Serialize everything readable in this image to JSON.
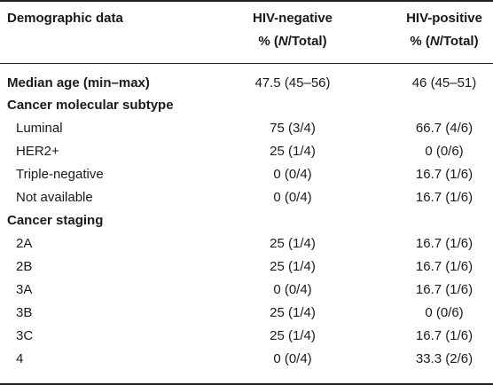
{
  "header": {
    "col1": "Demographic data",
    "col2_line1": "HIV-negative",
    "col2_line2_pre": "% (",
    "col2_line2_n": "N",
    "col2_line2_post": "/Total)",
    "col3_line1": "HIV-positive",
    "col3_line2_pre": "% (",
    "col3_line2_n": "N",
    "col3_line2_post": "/Total)"
  },
  "rows": [
    {
      "label": "Median age (min–max)",
      "neg": "47.5 (45–56)",
      "pos": "46 (45–51)"
    },
    {
      "label": "Cancer molecular subtype",
      "neg": "",
      "pos": ""
    },
    {
      "label": "Luminal",
      "neg": "75 (3/4)",
      "pos": "66.7 (4/6)"
    },
    {
      "label": "HER2+",
      "neg": "25 (1/4)",
      "pos": "0 (0/6)"
    },
    {
      "label": "Triple-negative",
      "neg": "0 (0/4)",
      "pos": "16.7 (1/6)"
    },
    {
      "label": "Not available",
      "neg": "0 (0/4)",
      "pos": "16.7 (1/6)"
    },
    {
      "label": "Cancer staging",
      "neg": "",
      "pos": ""
    },
    {
      "label": "2A",
      "neg": "25 (1/4)",
      "pos": "16.7 (1/6)"
    },
    {
      "label": "2B",
      "neg": "25 (1/4)",
      "pos": "16.7 (1/6)"
    },
    {
      "label": "3A",
      "neg": "0 (0/4)",
      "pos": "16.7 (1/6)"
    },
    {
      "label": "3B",
      "neg": "25 (1/4)",
      "pos": "0 (0/6)"
    },
    {
      "label": "3C",
      "neg": "25 (1/4)",
      "pos": "16.7 (1/6)"
    },
    {
      "label": "4",
      "neg": "0 (0/4)",
      "pos": "33.3 (2/6)"
    }
  ]
}
